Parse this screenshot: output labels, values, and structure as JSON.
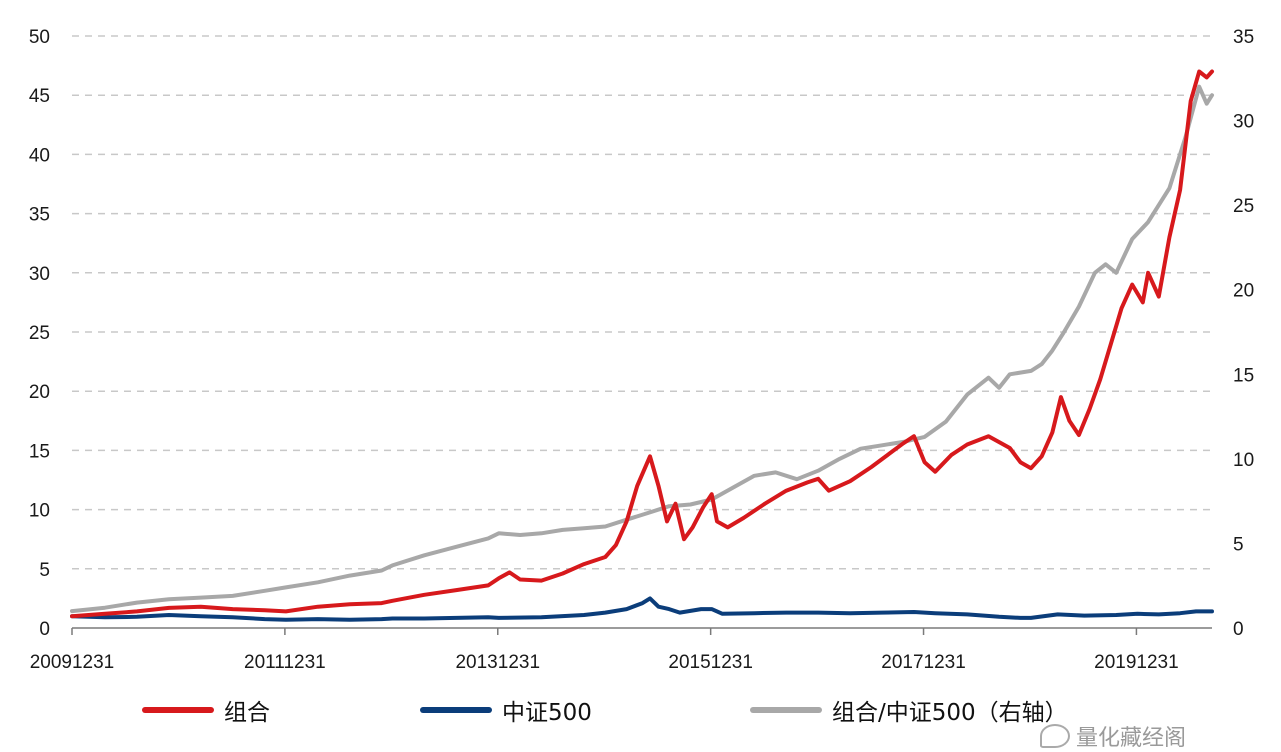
{
  "chart_data": {
    "type": "line",
    "title": "",
    "xlabel": "",
    "ylabel": "",
    "ylim": [
      0,
      50
    ],
    "y2lim": [
      0,
      35
    ],
    "yticks": [
      "0",
      "5",
      "10",
      "15",
      "20",
      "25",
      "30",
      "35",
      "40",
      "45",
      "50"
    ],
    "y2ticks": [
      "0",
      "5",
      "10",
      "15",
      "20",
      "25",
      "30",
      "35"
    ],
    "xticks": [
      "20091231",
      "20111231",
      "20131231",
      "20151231",
      "20171231",
      "20191231"
    ],
    "x_start": 2009.99,
    "x_end": 2020.7,
    "grid": true,
    "legend_position": "bottom",
    "series": [
      {
        "name": "组合",
        "axis": "left",
        "color": "#d7191c",
        "points": [
          [
            2009.99,
            1.0
          ],
          [
            2010.3,
            1.2
          ],
          [
            2010.6,
            1.4
          ],
          [
            2010.9,
            1.7
          ],
          [
            2011.2,
            1.8
          ],
          [
            2011.5,
            1.6
          ],
          [
            2011.8,
            1.5
          ],
          [
            2012.0,
            1.4
          ],
          [
            2012.3,
            1.8
          ],
          [
            2012.6,
            2.0
          ],
          [
            2012.9,
            2.1
          ],
          [
            2013.0,
            2.3
          ],
          [
            2013.3,
            2.8
          ],
          [
            2013.6,
            3.2
          ],
          [
            2013.9,
            3.6
          ],
          [
            2014.0,
            4.2
          ],
          [
            2014.1,
            4.7
          ],
          [
            2014.2,
            4.1
          ],
          [
            2014.4,
            4.0
          ],
          [
            2014.6,
            4.6
          ],
          [
            2014.8,
            5.4
          ],
          [
            2015.0,
            6.0
          ],
          [
            2015.1,
            7.0
          ],
          [
            2015.2,
            9.0
          ],
          [
            2015.3,
            12.0
          ],
          [
            2015.42,
            14.5
          ],
          [
            2015.5,
            12.0
          ],
          [
            2015.58,
            9.0
          ],
          [
            2015.66,
            10.5
          ],
          [
            2015.74,
            7.5
          ],
          [
            2015.82,
            8.5
          ],
          [
            2015.92,
            10.2
          ],
          [
            2016.0,
            11.3
          ],
          [
            2016.05,
            9.0
          ],
          [
            2016.15,
            8.5
          ],
          [
            2016.3,
            9.3
          ],
          [
            2016.5,
            10.5
          ],
          [
            2016.7,
            11.6
          ],
          [
            2016.9,
            12.3
          ],
          [
            2017.0,
            12.6
          ],
          [
            2017.1,
            11.6
          ],
          [
            2017.3,
            12.4
          ],
          [
            2017.5,
            13.6
          ],
          [
            2017.65,
            14.6
          ],
          [
            2017.8,
            15.6
          ],
          [
            2017.9,
            16.2
          ],
          [
            2018.0,
            14.0
          ],
          [
            2018.1,
            13.2
          ],
          [
            2018.25,
            14.6
          ],
          [
            2018.4,
            15.5
          ],
          [
            2018.6,
            16.2
          ],
          [
            2018.8,
            15.2
          ],
          [
            2018.9,
            14.0
          ],
          [
            2019.0,
            13.5
          ],
          [
            2019.1,
            14.5
          ],
          [
            2019.2,
            16.5
          ],
          [
            2019.28,
            19.5
          ],
          [
            2019.36,
            17.5
          ],
          [
            2019.45,
            16.3
          ],
          [
            2019.55,
            18.5
          ],
          [
            2019.65,
            21.0
          ],
          [
            2019.75,
            24.0
          ],
          [
            2019.85,
            27.0
          ],
          [
            2019.95,
            29.0
          ],
          [
            2020.05,
            27.5
          ],
          [
            2020.1,
            30.0
          ],
          [
            2020.2,
            28.0
          ],
          [
            2020.3,
            33.0
          ],
          [
            2020.4,
            37.0
          ],
          [
            2020.5,
            44.5
          ],
          [
            2020.58,
            47.0
          ],
          [
            2020.65,
            46.5
          ],
          [
            2020.7,
            47.0
          ]
        ]
      },
      {
        "name": "中证500",
        "axis": "left",
        "color": "#0b3d7a",
        "points": [
          [
            2009.99,
            1.0
          ],
          [
            2010.3,
            0.9
          ],
          [
            2010.6,
            0.95
          ],
          [
            2010.9,
            1.1
          ],
          [
            2011.2,
            1.0
          ],
          [
            2011.5,
            0.9
          ],
          [
            2011.8,
            0.75
          ],
          [
            2012.0,
            0.7
          ],
          [
            2012.3,
            0.75
          ],
          [
            2012.6,
            0.7
          ],
          [
            2012.9,
            0.75
          ],
          [
            2013.0,
            0.8
          ],
          [
            2013.3,
            0.8
          ],
          [
            2013.6,
            0.85
          ],
          [
            2013.9,
            0.9
          ],
          [
            2014.0,
            0.85
          ],
          [
            2014.4,
            0.9
          ],
          [
            2014.8,
            1.1
          ],
          [
            2015.0,
            1.3
          ],
          [
            2015.2,
            1.6
          ],
          [
            2015.35,
            2.1
          ],
          [
            2015.42,
            2.5
          ],
          [
            2015.5,
            1.8
          ],
          [
            2015.6,
            1.6
          ],
          [
            2015.7,
            1.3
          ],
          [
            2015.9,
            1.6
          ],
          [
            2016.0,
            1.6
          ],
          [
            2016.1,
            1.2
          ],
          [
            2016.4,
            1.25
          ],
          [
            2016.7,
            1.3
          ],
          [
            2017.0,
            1.3
          ],
          [
            2017.3,
            1.25
          ],
          [
            2017.6,
            1.3
          ],
          [
            2017.9,
            1.35
          ],
          [
            2018.1,
            1.25
          ],
          [
            2018.4,
            1.15
          ],
          [
            2018.7,
            0.95
          ],
          [
            2018.9,
            0.85
          ],
          [
            2019.0,
            0.85
          ],
          [
            2019.25,
            1.15
          ],
          [
            2019.5,
            1.05
          ],
          [
            2019.8,
            1.1
          ],
          [
            2020.0,
            1.2
          ],
          [
            2020.2,
            1.15
          ],
          [
            2020.4,
            1.25
          ],
          [
            2020.55,
            1.4
          ],
          [
            2020.7,
            1.4
          ]
        ]
      },
      {
        "name": "组合/中证500（右轴）",
        "axis": "right",
        "color": "#a8a8a8",
        "points": [
          [
            2009.99,
            1.0
          ],
          [
            2010.3,
            1.2
          ],
          [
            2010.6,
            1.5
          ],
          [
            2010.9,
            1.7
          ],
          [
            2011.2,
            1.8
          ],
          [
            2011.5,
            1.9
          ],
          [
            2011.8,
            2.2
          ],
          [
            2012.0,
            2.4
          ],
          [
            2012.3,
            2.7
          ],
          [
            2012.6,
            3.1
          ],
          [
            2012.9,
            3.4
          ],
          [
            2013.0,
            3.7
          ],
          [
            2013.3,
            4.3
          ],
          [
            2013.6,
            4.8
          ],
          [
            2013.9,
            5.3
          ],
          [
            2014.0,
            5.6
          ],
          [
            2014.2,
            5.5
          ],
          [
            2014.4,
            5.6
          ],
          [
            2014.6,
            5.8
          ],
          [
            2014.8,
            5.9
          ],
          [
            2015.0,
            6.0
          ],
          [
            2015.2,
            6.4
          ],
          [
            2015.4,
            6.8
          ],
          [
            2015.6,
            7.2
          ],
          [
            2015.8,
            7.3
          ],
          [
            2016.0,
            7.6
          ],
          [
            2016.2,
            8.3
          ],
          [
            2016.4,
            9.0
          ],
          [
            2016.6,
            9.2
          ],
          [
            2016.8,
            8.8
          ],
          [
            2017.0,
            9.3
          ],
          [
            2017.2,
            10.0
          ],
          [
            2017.4,
            10.6
          ],
          [
            2017.6,
            10.8
          ],
          [
            2017.8,
            11.0
          ],
          [
            2018.0,
            11.3
          ],
          [
            2018.2,
            12.2
          ],
          [
            2018.4,
            13.8
          ],
          [
            2018.6,
            14.8
          ],
          [
            2018.7,
            14.2
          ],
          [
            2018.8,
            15.0
          ],
          [
            2019.0,
            15.2
          ],
          [
            2019.1,
            15.6
          ],
          [
            2019.2,
            16.4
          ],
          [
            2019.3,
            17.4
          ],
          [
            2019.45,
            19.0
          ],
          [
            2019.6,
            21.0
          ],
          [
            2019.7,
            21.5
          ],
          [
            2019.8,
            21.0
          ],
          [
            2019.95,
            23.0
          ],
          [
            2020.1,
            24.0
          ],
          [
            2020.3,
            26.0
          ],
          [
            2020.45,
            29.0
          ],
          [
            2020.58,
            32.0
          ],
          [
            2020.65,
            31.0
          ],
          [
            2020.7,
            31.5
          ]
        ]
      }
    ]
  },
  "legend": {
    "items": [
      {
        "label": "组合",
        "color": "#d7191c"
      },
      {
        "label": "中证500",
        "color": "#0b3d7a"
      },
      {
        "label": "组合/中证500（右轴）",
        "color": "#a8a8a8"
      }
    ]
  },
  "watermark": {
    "text": "量化藏经阁"
  }
}
